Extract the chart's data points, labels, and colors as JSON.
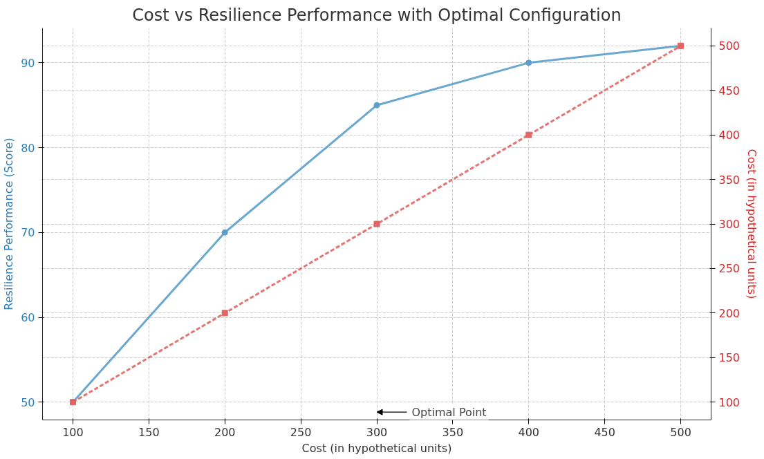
{
  "chart_data": {
    "type": "line",
    "title": "Cost vs Resilience Performance with Optimal Configuration",
    "xlabel": "Cost (in hypothetical units)",
    "ylabel": "Resilience Performance (Score)",
    "y2label": "Cost (in hypothetical units)",
    "x": [
      100,
      200,
      300,
      400,
      500
    ],
    "series": [
      {
        "color": "#5b9fcb",
        "values": [
          50,
          70,
          85,
          90,
          92
        ],
        "marker": "circle",
        "line_style": "solid"
      },
      {
        "color": "#e06666",
        "values": [
          100,
          200,
          300,
          400,
          500
        ],
        "marker": "square",
        "line_style": "dashed",
        "axis": "y2"
      }
    ],
    "xlim": [
      80,
      520
    ],
    "xticks": [
      100,
      150,
      200,
      250,
      300,
      350,
      400,
      450,
      500
    ],
    "ylim": [
      47.9,
      94.1
    ],
    "yticks": [
      50,
      60,
      70,
      80,
      90
    ],
    "y2lim": [
      80,
      520
    ],
    "y2ticks": [
      100,
      150,
      200,
      250,
      300,
      350,
      400,
      450,
      500
    ],
    "annotations": [
      "Optimal Point"
    ],
    "grid": true
  }
}
